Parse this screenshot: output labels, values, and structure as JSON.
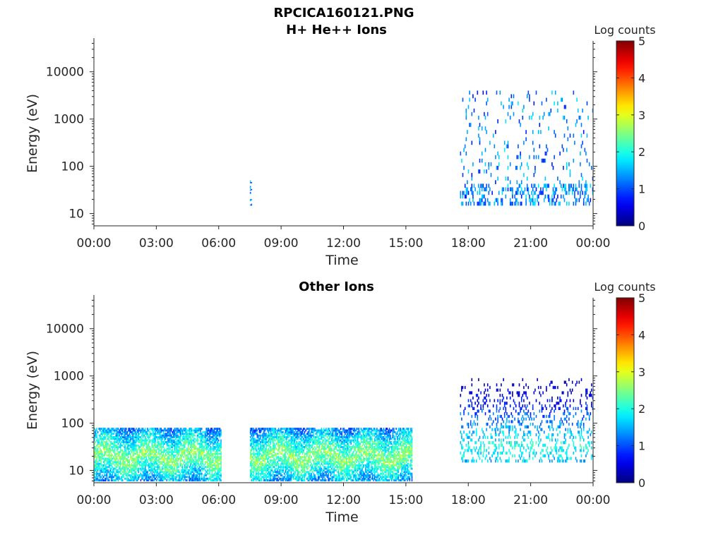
{
  "figure_title": "RPCICA160121.PNG",
  "chart_data": [
    {
      "type": "heatmap",
      "title": "H+ He++ Ions",
      "xlabel": "Time",
      "ylabel": "Energy (eV)",
      "x_ticks": [
        "00:00",
        "03:00",
        "06:00",
        "09:00",
        "12:00",
        "15:00",
        "18:00",
        "21:00",
        "00:00"
      ],
      "x_range_hours": [
        0,
        24
      ],
      "y_scale": "log",
      "y_ticks": [
        "10",
        "100",
        "1000",
        "10000"
      ],
      "y_range": [
        5.5,
        45000
      ],
      "colorbar": {
        "label": "Log counts",
        "range": [
          0,
          5
        ],
        "ticks": [
          "0",
          "1",
          "2",
          "3",
          "4",
          "5"
        ],
        "colormap": "jet"
      },
      "activity": [
        {
          "start_hour": 7.5,
          "end_hour": 7.6,
          "e_min": 15,
          "e_max": 50,
          "level": "sparse"
        },
        {
          "start_hour": 17.6,
          "end_hour": 24.0,
          "e_min": 15,
          "e_max": 4000,
          "level": "sparse"
        }
      ]
    },
    {
      "type": "heatmap",
      "title": "Other Ions",
      "xlabel": "Time",
      "ylabel": "Energy (eV)",
      "x_ticks": [
        "00:00",
        "03:00",
        "06:00",
        "09:00",
        "12:00",
        "15:00",
        "18:00",
        "21:00",
        "00:00"
      ],
      "x_range_hours": [
        0,
        24
      ],
      "y_scale": "log",
      "y_ticks": [
        "10",
        "100",
        "1000",
        "10000"
      ],
      "y_range": [
        5.5,
        45000
      ],
      "colorbar": {
        "label": "Log counts",
        "range": [
          0,
          5
        ],
        "ticks": [
          "0",
          "1",
          "2",
          "3",
          "4",
          "5"
        ],
        "colormap": "jet"
      },
      "activity": [
        {
          "start_hour": 0.0,
          "end_hour": 6.1,
          "e_min": 6,
          "e_max": 80,
          "level": "dense",
          "peak_energy": 20,
          "peak_log_counts": 2.6
        },
        {
          "start_hour": 7.5,
          "end_hour": 15.3,
          "e_min": 6,
          "e_max": 80,
          "level": "dense",
          "peak_energy": 20,
          "peak_log_counts": 2.6
        },
        {
          "start_hour": 17.6,
          "end_hour": 24.0,
          "e_min": 15,
          "e_max": 900,
          "level": "medium",
          "peak_energy": 30,
          "peak_log_counts": 2.0
        }
      ]
    }
  ]
}
